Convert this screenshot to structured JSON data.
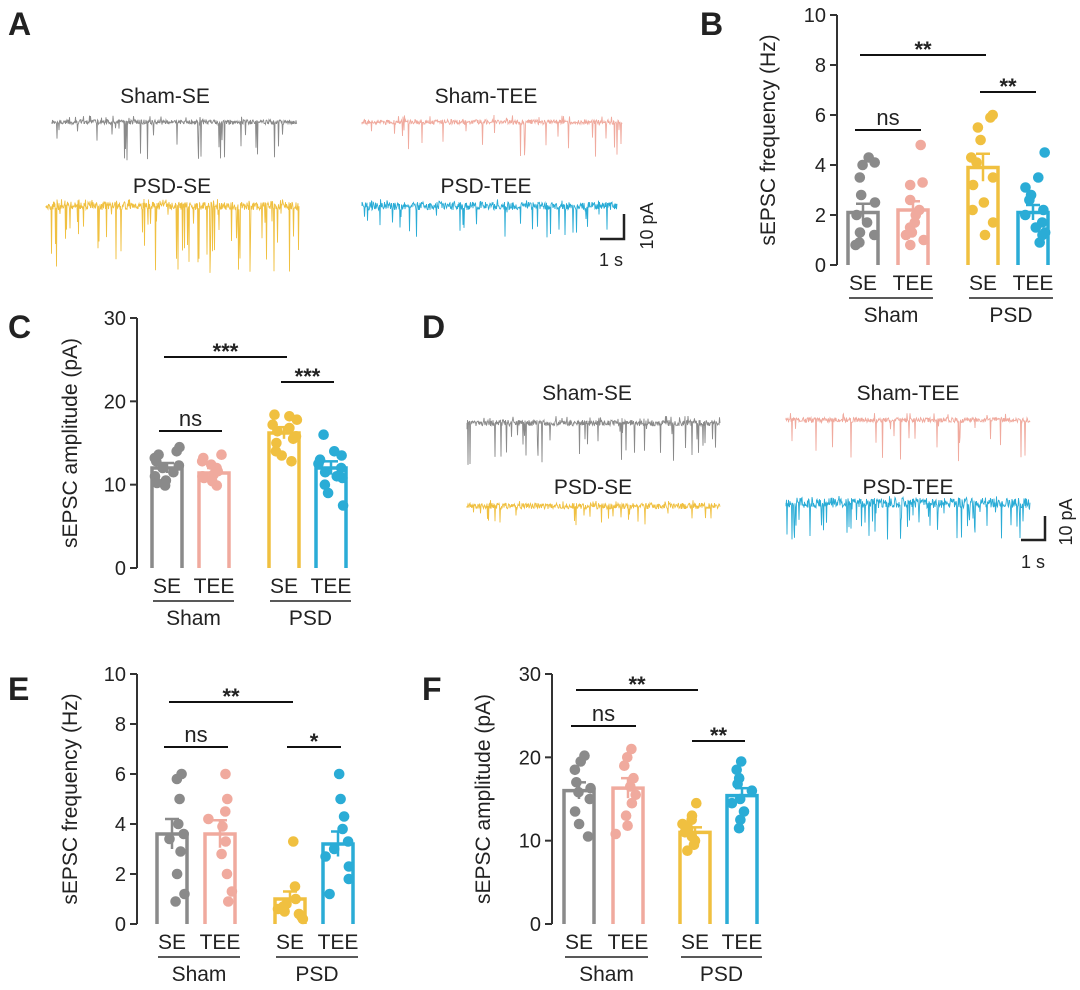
{
  "colors": {
    "sham_se": "#8a8a8a",
    "sham_tee": "#f0aa9e",
    "psd_se": "#f0c040",
    "psd_tee": "#2aacd6",
    "axis": "#333333"
  },
  "panel_labels": {
    "a": "A",
    "b": "B",
    "c": "C",
    "d": "D",
    "e": "E",
    "f": "F"
  },
  "traces": {
    "a": {
      "sham_se": "Sham-SE",
      "sham_tee": "Sham-TEE",
      "psd_se": "PSD-SE",
      "psd_tee": "PSD-TEE",
      "scale_y": "10 pA",
      "scale_x": "1 s"
    },
    "d": {
      "sham_se": "Sham-SE",
      "sham_tee": "Sham-TEE",
      "psd_se": "PSD-SE",
      "psd_tee": "PSD-TEE",
      "scale_y": "10 pA",
      "scale_x": "1 s"
    }
  },
  "chart_data": [
    {
      "id": "B",
      "type": "bar",
      "ylabel": "sEPSC frequency (Hz)",
      "ylim": [
        0,
        10
      ],
      "yticks": [
        "0",
        "2",
        "4",
        "6",
        "8",
        "10"
      ],
      "categories": [
        "SE",
        "TEE",
        "SE",
        "TEE"
      ],
      "groups": [
        "Sham",
        "PSD"
      ],
      "values": [
        2.1,
        2.2,
        3.9,
        2.1
      ],
      "errors": [
        0.35,
        0.35,
        0.55,
        0.3
      ],
      "points": [
        [
          0.8,
          1.2,
          1.3,
          1.7,
          2.0,
          2.5,
          2.8,
          3.5,
          4.0,
          4.1,
          4.3,
          0.9
        ],
        [
          0.8,
          1.0,
          1.3,
          1.5,
          1.7,
          2.0,
          2.2,
          2.6,
          3.2,
          3.3,
          4.8,
          1.2
        ],
        [
          1.2,
          1.7,
          2.5,
          3.2,
          3.5,
          4.1,
          4.3,
          5.0,
          5.5,
          5.9,
          6.0,
          2.2
        ],
        [
          0.9,
          1.2,
          1.5,
          1.7,
          2.0,
          2.2,
          2.6,
          2.8,
          3.1,
          3.5,
          4.5,
          1.3
        ]
      ],
      "significance": [
        {
          "from": 0,
          "to": 2,
          "label": "**"
        },
        {
          "from": 0,
          "to": 1,
          "label": "ns"
        },
        {
          "from": 2,
          "to": 3,
          "label": "**"
        }
      ]
    },
    {
      "id": "C",
      "type": "bar",
      "ylabel": "sEPSC amplitude (pA)",
      "ylim": [
        0,
        30
      ],
      "yticks": [
        "0",
        "10",
        "20",
        "30"
      ],
      "categories": [
        "SE",
        "TEE",
        "SE",
        "TEE"
      ],
      "groups": [
        "Sham",
        "PSD"
      ],
      "values": [
        12,
        11.4,
        16.2,
        12
      ],
      "errors": [
        0.6,
        0.6,
        0.7,
        0.8
      ],
      "points": [
        [
          9.9,
          10.5,
          11.0,
          11.5,
          12.0,
          12.3,
          12.8,
          13.2,
          13.6,
          14.0,
          14.5,
          10.2
        ],
        [
          9.9,
          10.4,
          10.8,
          11.2,
          11.6,
          12.0,
          12.4,
          12.8,
          13.2,
          13.6,
          11.0
        ],
        [
          12.8,
          13.5,
          14.0,
          15.0,
          15.8,
          16.4,
          16.8,
          17.2,
          17.8,
          18.2,
          18.4,
          15.5
        ],
        [
          7.5,
          9.0,
          10.0,
          10.8,
          11.5,
          12.0,
          12.5,
          13.0,
          13.5,
          14.0,
          16.0,
          11.0
        ]
      ],
      "significance": [
        {
          "from": 0,
          "to": 2,
          "label": "***"
        },
        {
          "from": 0,
          "to": 1,
          "label": "ns"
        },
        {
          "from": 2,
          "to": 3,
          "label": "***"
        }
      ]
    },
    {
      "id": "E",
      "type": "bar",
      "ylabel": "sEPSC frequency (Hz)",
      "ylim": [
        0,
        10
      ],
      "yticks": [
        "0",
        "2",
        "4",
        "6",
        "8",
        "10"
      ],
      "categories": [
        "SE",
        "TEE",
        "SE",
        "TEE"
      ],
      "groups": [
        "Sham",
        "PSD"
      ],
      "values": [
        3.6,
        3.6,
        1.0,
        3.2
      ],
      "errors": [
        0.6,
        0.55,
        0.3,
        0.5
      ],
      "points": [
        [
          0.9,
          1.2,
          2.0,
          2.9,
          3.4,
          3.6,
          4.0,
          5.8,
          6.0,
          5.0
        ],
        [
          0.9,
          1.3,
          2.0,
          2.8,
          3.3,
          3.9,
          4.2,
          4.5,
          5.0,
          6.0
        ],
        [
          0.2,
          0.3,
          0.4,
          0.5,
          0.6,
          0.7,
          0.8,
          1.0,
          1.5,
          3.3
        ],
        [
          1.2,
          1.8,
          2.3,
          2.7,
          3.0,
          3.3,
          3.8,
          4.3,
          5.0,
          6.0
        ]
      ],
      "significance": [
        {
          "from": 0,
          "to": 2,
          "label": "**"
        },
        {
          "from": 0,
          "to": 1,
          "label": "ns"
        },
        {
          "from": 2,
          "to": 3,
          "label": "*"
        }
      ]
    },
    {
      "id": "F",
      "type": "bar",
      "ylabel": "sEPSC amplitude (pA)",
      "ylim": [
        0,
        30
      ],
      "yticks": [
        "0",
        "10",
        "20",
        "30"
      ],
      "categories": [
        "SE",
        "TEE",
        "SE",
        "TEE"
      ],
      "groups": [
        "Sham",
        "PSD"
      ],
      "values": [
        16,
        16.3,
        11,
        15.4
      ],
      "errors": [
        1.0,
        1.2,
        0.6,
        0.9
      ],
      "points": [
        [
          10.5,
          12.0,
          13.5,
          15.0,
          15.8,
          16.3,
          17.0,
          18.5,
          19.5,
          20.2
        ],
        [
          10.8,
          11.8,
          13.0,
          14.5,
          15.5,
          16.5,
          17.5,
          19.0,
          20.0,
          21.0
        ],
        [
          8.8,
          9.5,
          10.0,
          10.5,
          11.0,
          11.5,
          12.0,
          12.5,
          13.0,
          14.5
        ],
        [
          11.5,
          12.5,
          13.5,
          14.5,
          15.0,
          16.0,
          16.8,
          17.5,
          18.5,
          19.5
        ]
      ],
      "significance": [
        {
          "from": 0,
          "to": 2,
          "label": "**"
        },
        {
          "from": 0,
          "to": 1,
          "label": "ns"
        },
        {
          "from": 2,
          "to": 3,
          "label": "**"
        }
      ]
    }
  ]
}
